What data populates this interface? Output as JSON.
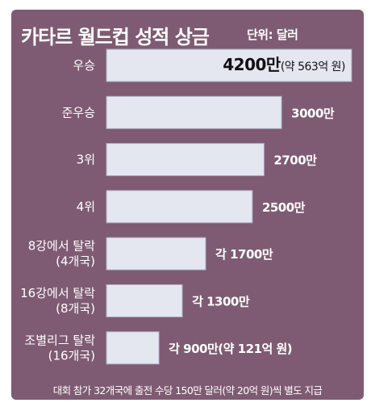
{
  "header": {
    "title": "카타르 월드컵 성적 상금",
    "unit": "단위: 달러"
  },
  "footnote": "대회 참가 32개국에 출전 수당 150만 달러(약 20억 원)씩 별도 지급",
  "colors": {
    "panel": "#7e5b73",
    "bar_fill": "#e4e7f0",
    "bar_border": "#a6a8bf",
    "text": "#ffffff"
  },
  "chart_data": {
    "type": "bar",
    "orientation": "horizontal",
    "categories": [
      "우승",
      "준우승",
      "3위",
      "4위",
      "8강에서 탈락\n(4개국)",
      "16강에서 탈락\n(8개국)",
      "조별리그 탈락\n(16개국)"
    ],
    "values": [
      42000000,
      30000000,
      27000000,
      25000000,
      17000000,
      13000000,
      9000000
    ],
    "value_labels": [
      {
        "main": "4200만",
        "suffix": "(약 563억 원)"
      },
      {
        "main": "3000만",
        "suffix": ""
      },
      {
        "main": "2700만",
        "suffix": ""
      },
      {
        "main": "2500만",
        "suffix": ""
      },
      {
        "main": "각 1700만",
        "suffix": ""
      },
      {
        "main": "각 1300만",
        "suffix": ""
      },
      {
        "main": "각 900만(약 121억 원)",
        "suffix": ""
      }
    ],
    "title": "카타르 월드컵 성적 상금",
    "unit": "단위: 달러",
    "xlim": [
      0,
      42000000
    ],
    "grid": false,
    "legend": "none"
  }
}
